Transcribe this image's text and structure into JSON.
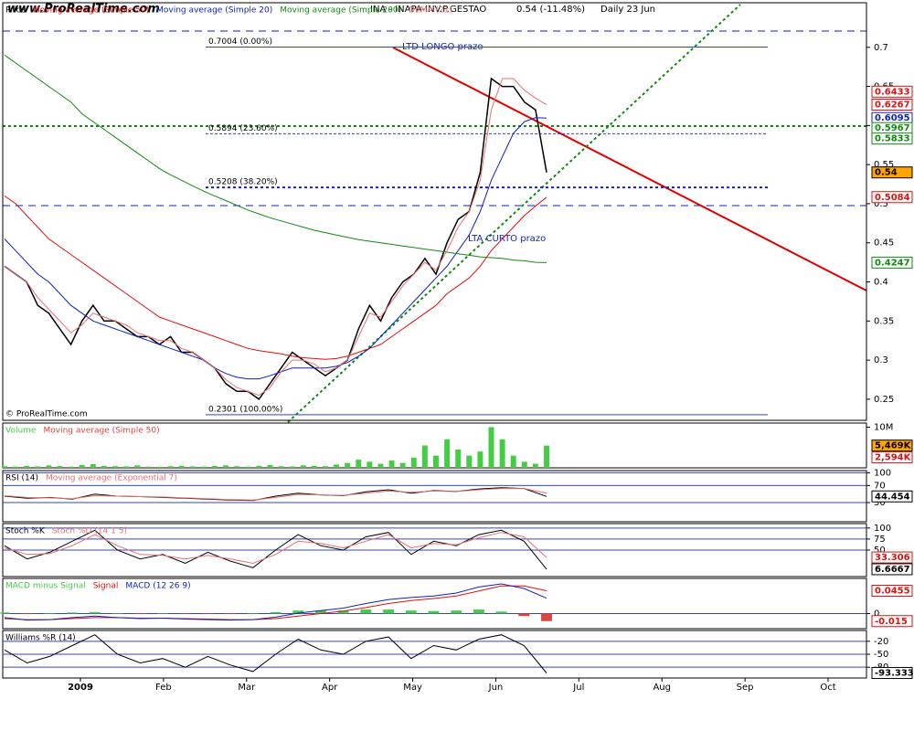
{
  "site": "www.ProRealTime.com",
  "copyright": "© ProRealTime.com",
  "time_axis": {
    "labels": [
      "2009",
      "Feb",
      "Mar",
      "Apr",
      "May",
      "Jun",
      "Jul",
      "Aug",
      "Sep",
      "Oct"
    ]
  },
  "chart_data": [
    {
      "type": "line",
      "title": "INA - INAPA-INV.P.GESTAO",
      "change": "0.54 (-11.48%)",
      "period": "Daily 23 Jun",
      "annotations": [
        "LTD LONGO prazo",
        "LTA CURTO prazo"
      ],
      "ylim": [
        0.223,
        0.757
      ],
      "yticks": [
        0.7,
        0.65,
        0.6,
        0.55,
        0.5,
        0.45,
        0.4,
        0.35,
        0.3,
        0.25
      ],
      "grid": false,
      "series": [
        {
          "name": "Price",
          "color": "#000000",
          "values": [
            0.42,
            0.41,
            0.4,
            0.37,
            0.36,
            0.34,
            0.32,
            0.35,
            0.37,
            0.35,
            0.35,
            0.34,
            0.33,
            0.33,
            0.32,
            0.33,
            0.31,
            0.31,
            0.3,
            0.29,
            0.27,
            0.26,
            0.26,
            0.25,
            0.27,
            0.29,
            0.31,
            0.3,
            0.29,
            0.28,
            0.29,
            0.3,
            0.34,
            0.37,
            0.35,
            0.38,
            0.4,
            0.41,
            0.43,
            0.41,
            0.45,
            0.48,
            0.49,
            0.54,
            0.66,
            0.65,
            0.65,
            0.63,
            0.62,
            0.54
          ]
        },
        {
          "name": "Moving average (Simple 50)",
          "color": "#dd1111",
          "values": [
            0.51,
            0.5,
            0.485,
            0.47,
            0.455,
            0.445,
            0.435,
            0.425,
            0.415,
            0.405,
            0.395,
            0.385,
            0.375,
            0.365,
            0.355,
            0.35,
            0.345,
            0.34,
            0.335,
            0.33,
            0.325,
            0.32,
            0.315,
            0.312,
            0.31,
            0.308,
            0.305,
            0.303,
            0.302,
            0.301,
            0.302,
            0.305,
            0.31,
            0.315,
            0.32,
            0.33,
            0.34,
            0.35,
            0.36,
            0.37,
            0.385,
            0.395,
            0.405,
            0.42,
            0.44,
            0.455,
            0.47,
            0.485,
            0.497,
            0.5084
          ]
        },
        {
          "name": "Moving average (Simple 20)",
          "color": "#1122bb",
          "values": [
            0.455,
            0.44,
            0.425,
            0.41,
            0.4,
            0.385,
            0.37,
            0.36,
            0.35,
            0.345,
            0.34,
            0.335,
            0.33,
            0.325,
            0.32,
            0.315,
            0.31,
            0.305,
            0.3,
            0.29,
            0.283,
            0.278,
            0.276,
            0.276,
            0.28,
            0.285,
            0.29,
            0.29,
            0.29,
            0.29,
            0.292,
            0.297,
            0.305,
            0.315,
            0.33,
            0.345,
            0.36,
            0.375,
            0.39,
            0.405,
            0.42,
            0.44,
            0.46,
            0.49,
            0.53,
            0.56,
            0.59,
            0.605,
            0.61,
            0.6095
          ]
        },
        {
          "name": "Moving average (Simple 200)",
          "color": "#118811",
          "values": [
            0.69,
            0.68,
            0.67,
            0.66,
            0.65,
            0.64,
            0.63,
            0.615,
            0.605,
            0.595,
            0.585,
            0.575,
            0.565,
            0.555,
            0.545,
            0.537,
            0.53,
            0.523,
            0.516,
            0.51,
            0.504,
            0.498,
            0.492,
            0.487,
            0.482,
            0.478,
            0.474,
            0.47,
            0.466,
            0.463,
            0.46,
            0.457,
            0.454,
            0.452,
            0.45,
            0.448,
            0.446,
            0.444,
            0.442,
            0.44,
            0.438,
            0.436,
            0.434,
            0.432,
            0.431,
            0.43,
            0.428,
            0.427,
            0.425,
            0.4247
          ]
        },
        {
          "name": "DEMA (21)",
          "color": "#e87070",
          "values": [
            0.42,
            0.41,
            0.4,
            0.38,
            0.365,
            0.35,
            0.335,
            0.345,
            0.36,
            0.355,
            0.35,
            0.345,
            0.335,
            0.33,
            0.325,
            0.325,
            0.315,
            0.31,
            0.3,
            0.29,
            0.275,
            0.265,
            0.26,
            0.255,
            0.265,
            0.285,
            0.3,
            0.3,
            0.295,
            0.285,
            0.29,
            0.3,
            0.33,
            0.36,
            0.355,
            0.375,
            0.395,
            0.41,
            0.425,
            0.415,
            0.44,
            0.47,
            0.49,
            0.53,
            0.62,
            0.66,
            0.66,
            0.645,
            0.635,
            0.6267
          ]
        }
      ],
      "levels": [
        {
          "value": 0.7004,
          "label": "0.7004 (0.00%)"
        },
        {
          "value": 0.5894,
          "label": "0.5894 (23.60%)"
        },
        {
          "value": 0.5208,
          "label": "0.5208 (38.20%)"
        },
        {
          "value": 0.2301,
          "label": "0.2301 (100.00%)"
        }
      ],
      "badges": [
        {
          "value": 0.6433,
          "color": "#dd1111"
        },
        {
          "value": 0.6267,
          "color": "#dd1111"
        },
        {
          "value": 0.6095,
          "color": "#1122bb"
        },
        {
          "value": 0.5967,
          "color": "#118811"
        },
        {
          "value": 0.5833,
          "color": "#118811"
        },
        {
          "value": 0.54,
          "color": "#000000",
          "background": "#ffa500"
        },
        {
          "value": 0.5084,
          "color": "#dd1111"
        },
        {
          "value": 0.4247,
          "color": "#118811"
        }
      ]
    },
    {
      "type": "bar",
      "ylim": [
        0,
        11000
      ],
      "yticks": [
        {
          "value": 10000,
          "label": "10M"
        }
      ],
      "grid": false,
      "series": [
        {
          "name": "Volume",
          "color": "#44cc44",
          "values": [
            400,
            300,
            500,
            350,
            600,
            450,
            300,
            700,
            900,
            500,
            400,
            350,
            600,
            300,
            250,
            400,
            500,
            350,
            300,
            450,
            600,
            400,
            300,
            500,
            700,
            400,
            350,
            600,
            500,
            400,
            800,
            1200,
            2000,
            1500,
            1000,
            1800,
            1200,
            2500,
            5500,
            3000,
            7000,
            4500,
            3000,
            4000,
            10000,
            7000,
            3000,
            1500,
            1000,
            5469
          ]
        },
        {
          "name": "Moving average (Simple 50)",
          "color": "#dd4444",
          "values": []
        }
      ],
      "badges": [
        {
          "value": 5469,
          "label": "5,469K",
          "color": "#000000",
          "background": "#ffa500"
        },
        {
          "value": 2594,
          "label": "2,594K",
          "color": "#dd1111"
        }
      ]
    },
    {
      "type": "line",
      "ylim": [
        -15,
        105
      ],
      "yticks": [
        100,
        70,
        30
      ],
      "grid": true,
      "series": [
        {
          "name": "RSI (14)",
          "color": "#000000",
          "values": [
            45,
            40,
            42,
            38,
            50,
            45,
            44,
            42,
            40,
            38,
            36,
            35,
            45,
            52,
            48,
            46,
            55,
            60,
            52,
            58,
            56,
            62,
            65,
            63,
            44.454
          ]
        },
        {
          "name": "Moving average (Exponential 7)",
          "color": "#e87070",
          "values": [
            46,
            42,
            41,
            39,
            46,
            45,
            44,
            43,
            41,
            39,
            37,
            36,
            42,
            49,
            48,
            47,
            52,
            57,
            54,
            57,
            56,
            60,
            63,
            63,
            52
          ]
        }
      ],
      "badges": [
        {
          "value": 44.454,
          "color": "#000000"
        }
      ]
    },
    {
      "type": "line",
      "ylim": [
        -10,
        110
      ],
      "yticks": [
        100,
        75,
        50
      ],
      "grid": true,
      "series": [
        {
          "name": "Stoch %K",
          "color": "#000000",
          "values": [
            60,
            30,
            45,
            70,
            95,
            50,
            30,
            40,
            20,
            45,
            25,
            10,
            50,
            85,
            60,
            50,
            80,
            90,
            40,
            70,
            60,
            85,
            95,
            70,
            6.6667
          ]
        },
        {
          "name": "Stoch %D (14 1 5)",
          "color": "#e87070",
          "values": [
            55,
            40,
            42,
            60,
            85,
            60,
            40,
            38,
            30,
            38,
            30,
            20,
            40,
            70,
            65,
            55,
            70,
            85,
            55,
            65,
            62,
            78,
            90,
            80,
            33.306
          ]
        }
      ],
      "badges": [
        {
          "value": 33.306,
          "color": "#dd1111"
        },
        {
          "value": 6.6667,
          "color": "#000000"
        }
      ]
    },
    {
      "type": "line",
      "ylim": [
        -0.03,
        0.07
      ],
      "yticks": [
        0
      ],
      "grid": true,
      "series": [
        {
          "name": "MACD minus Signal",
          "type": "bar",
          "color": "#44cc44",
          "values": [
            0.002,
            -0.001,
            0,
            0.002,
            0.003,
            0,
            -0.001,
            0,
            -0.001,
            -0.001,
            -0.001,
            0,
            0.003,
            0.006,
            0.006,
            0.006,
            0.008,
            0.008,
            0.006,
            0.005,
            0.006,
            0.008,
            0.004,
            -0.005,
            -0.015
          ]
        },
        {
          "name": "Signal",
          "color": "#dd1111",
          "values": [
            -0.01,
            -0.012,
            -0.012,
            -0.01,
            -0.008,
            -0.008,
            -0.009,
            -0.009,
            -0.01,
            -0.011,
            -0.012,
            -0.012,
            -0.01,
            -0.005,
            0,
            0.005,
            0.012,
            0.02,
            0.026,
            0.03,
            0.035,
            0.045,
            0.055,
            0.055,
            0.0455
          ]
        },
        {
          "name": "MACD (12 26 9)",
          "color": "#1122bb",
          "values": [
            -0.008,
            -0.013,
            -0.012,
            -0.008,
            -0.005,
            -0.008,
            -0.01,
            -0.009,
            -0.011,
            -0.012,
            -0.013,
            -0.012,
            -0.007,
            0.001,
            0.006,
            0.011,
            0.02,
            0.028,
            0.032,
            0.035,
            0.041,
            0.053,
            0.059,
            0.05,
            0.0305
          ]
        }
      ],
      "badges": [
        {
          "value": 0.0455,
          "color": "#dd1111"
        },
        {
          "value": -0.015,
          "color": "#dd1111"
        }
      ]
    },
    {
      "type": "line",
      "ylim": [
        -105,
        5
      ],
      "yticks": [
        -20,
        -50,
        -80
      ],
      "grid": true,
      "series": [
        {
          "name": "Williams %R (14)",
          "color": "#000000",
          "values": [
            -40,
            -70,
            -55,
            -30,
            -5,
            -50,
            -70,
            -60,
            -80,
            -55,
            -75,
            -90,
            -50,
            -15,
            -40,
            -50,
            -20,
            -10,
            -60,
            -30,
            -40,
            -15,
            -5,
            -30,
            -93.333
          ]
        }
      ],
      "badges": [
        {
          "value": -93.333,
          "color": "#000000"
        }
      ]
    }
  ]
}
